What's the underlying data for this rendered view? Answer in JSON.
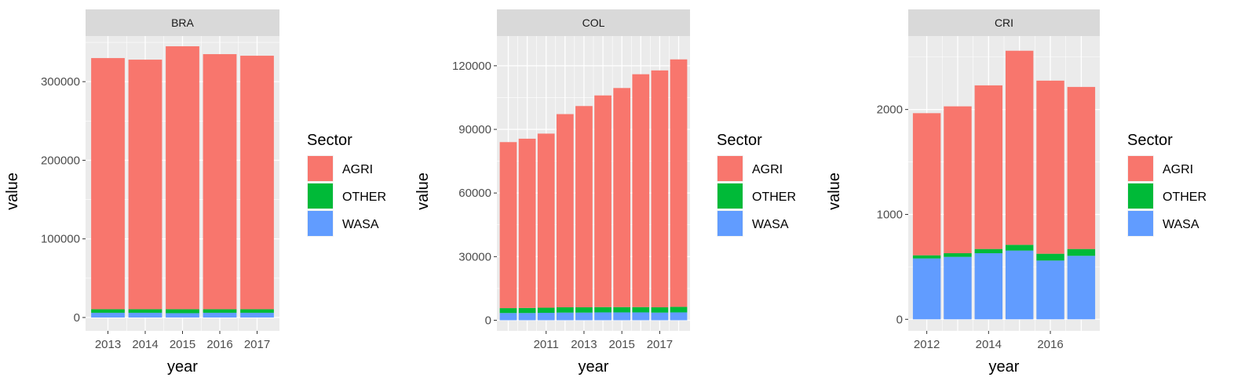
{
  "colors": {
    "AGRI": "#F8766D",
    "OTHER": "#00BA38",
    "WASA": "#619CFF",
    "panel_bg": "#EBEBEB",
    "strip_bg": "#D9D9D9",
    "grid": "#FFFFFF"
  },
  "legend": {
    "title": "Sector",
    "entries": [
      "AGRI",
      "OTHER",
      "WASA"
    ]
  },
  "chart_data": [
    {
      "type": "bar",
      "stacked": true,
      "title": "BRA",
      "xlabel": "year",
      "ylabel": "value",
      "x": [
        2013,
        2014,
        2015,
        2016,
        2017
      ],
      "xticks": [
        2013,
        2014,
        2015,
        2016,
        2017
      ],
      "xlim": [
        2012.4,
        2017.6
      ],
      "ylim": [
        -17000,
        358000
      ],
      "yticks": [
        0,
        100000,
        200000,
        300000
      ],
      "series": [
        {
          "name": "WASA",
          "values": [
            6000,
            6000,
            5500,
            6000,
            6000
          ]
        },
        {
          "name": "OTHER",
          "values": [
            4500,
            4500,
            5000,
            4500,
            4500
          ]
        },
        {
          "name": "AGRI",
          "values": [
            319500,
            317500,
            334500,
            324500,
            322500
          ]
        }
      ],
      "grid": true,
      "legend_position": "right"
    },
    {
      "type": "bar",
      "stacked": true,
      "title": "COL",
      "xlabel": "year",
      "ylabel": "value",
      "x": [
        2009,
        2010,
        2011,
        2012,
        2013,
        2014,
        2015,
        2016,
        2017,
        2018
      ],
      "xticks": [
        2011,
        2013,
        2015,
        2017
      ],
      "xlim": [
        2008.4,
        2018.6
      ],
      "ylim": [
        -5000,
        134000
      ],
      "yticks": [
        0,
        30000,
        60000,
        90000,
        120000
      ],
      "series": [
        {
          "name": "WASA",
          "values": [
            3400,
            3400,
            3500,
            3600,
            3600,
            3700,
            3700,
            3700,
            3600,
            3700
          ]
        },
        {
          "name": "OTHER",
          "values": [
            2300,
            2400,
            2400,
            2500,
            2500,
            2500,
            2500,
            2500,
            2500,
            2600
          ]
        },
        {
          "name": "AGRI",
          "values": [
            78300,
            79800,
            82100,
            91100,
            94900,
            99800,
            103300,
            109800,
            111700,
            116700
          ]
        }
      ],
      "grid": true,
      "legend_position": "right"
    },
    {
      "type": "bar",
      "stacked": true,
      "title": "CRI",
      "xlabel": "year",
      "ylabel": "value",
      "x": [
        2012,
        2013,
        2014,
        2015,
        2016,
        2017
      ],
      "xticks": [
        2012,
        2014,
        2016
      ],
      "xlim": [
        2011.4,
        2017.6
      ],
      "ylim": [
        -110,
        2700
      ],
      "yticks": [
        0,
        1000,
        2000
      ],
      "series": [
        {
          "name": "WASA",
          "values": [
            580,
            595,
            630,
            655,
            560,
            605
          ]
        },
        {
          "name": "OTHER",
          "values": [
            30,
            35,
            40,
            55,
            65,
            65
          ]
        },
        {
          "name": "AGRI",
          "values": [
            1355,
            1400,
            1560,
            1850,
            1650,
            1545
          ]
        }
      ],
      "grid": true,
      "legend_position": "right"
    }
  ]
}
